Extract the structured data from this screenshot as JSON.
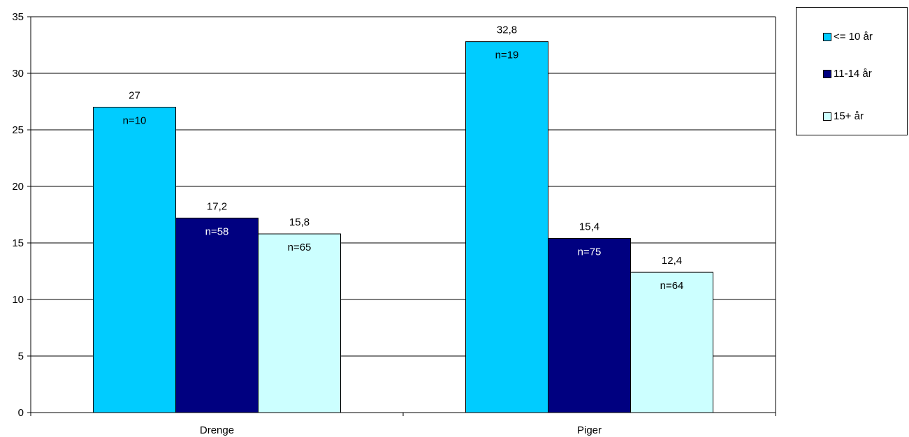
{
  "chart_data": {
    "type": "bar",
    "categories": [
      "Drenge",
      "Piger"
    ],
    "series": [
      {
        "name": "<= 10 år",
        "color": "#00ccff",
        "values": [
          27,
          32.8
        ],
        "value_labels": [
          "27",
          "32,8"
        ],
        "n_labels": [
          "n=10",
          "n=19"
        ],
        "n_label_color": "#000000"
      },
      {
        "name": "11-14 år",
        "color": "#000080",
        "values": [
          17.2,
          15.4
        ],
        "value_labels": [
          "17,2",
          "15,4"
        ],
        "n_labels": [
          "n=58",
          "n=75"
        ],
        "n_label_color": "#ffffff"
      },
      {
        "name": "15+ år",
        "color": "#ccffff",
        "values": [
          15.8,
          12.4
        ],
        "value_labels": [
          "15,8",
          "12,4"
        ],
        "n_labels": [
          "n=65",
          "n=64"
        ],
        "n_label_color": "#000000"
      }
    ],
    "ylim": [
      0,
      35
    ],
    "yticks": [
      "0",
      "5",
      "10",
      "15",
      "20",
      "25",
      "30",
      "35"
    ],
    "ytick_values": [
      0,
      5,
      10,
      15,
      20,
      25,
      30,
      35
    ],
    "grid": true,
    "legend_position": "top-right"
  }
}
